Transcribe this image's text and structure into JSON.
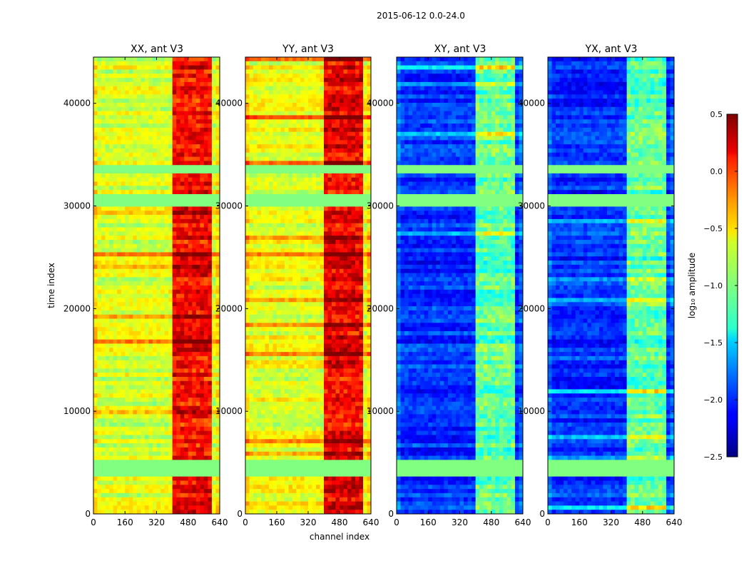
{
  "figure": {
    "suptitle": "2015-06-12 0.0-24.0"
  },
  "chart_data": [
    {
      "type": "heatmap",
      "title": "XX, ant V3",
      "xlabel": "",
      "ylabel": "time index",
      "xlim": [
        0,
        640
      ],
      "ylim": [
        0,
        44500
      ],
      "xticks": [
        "0",
        "160",
        "320",
        "480",
        "640"
      ],
      "yticks": [
        "0",
        "10000",
        "20000",
        "30000",
        "40000"
      ],
      "base_level": -0.75,
      "bright_channels": [
        400,
        600
      ],
      "bright_level": 0.1
    },
    {
      "type": "heatmap",
      "title": "YY, ant V3",
      "xlabel": "channel index",
      "ylabel": "",
      "xlim": [
        0,
        640
      ],
      "ylim": [
        0,
        44500
      ],
      "xticks": [
        "0",
        "160",
        "320",
        "480",
        "640"
      ],
      "yticks": [
        "0",
        "10000",
        "20000",
        "30000",
        "40000"
      ],
      "base_level": -0.7,
      "bright_channels": [
        400,
        600
      ],
      "bright_level": 0.15
    },
    {
      "type": "heatmap",
      "title": "XY, ant V3",
      "xlabel": "",
      "ylabel": "",
      "xlim": [
        0,
        640
      ],
      "ylim": [
        0,
        44500
      ],
      "xticks": [
        "0",
        "160",
        "320",
        "480",
        "640"
      ],
      "yticks": [
        "0",
        "10000",
        "20000",
        "30000",
        "40000"
      ],
      "base_level": -2.0,
      "bright_channels": [
        400,
        600
      ],
      "bright_level": -1.1
    },
    {
      "type": "heatmap",
      "title": "YX, ant V3",
      "xlabel": "",
      "ylabel": "",
      "xlim": [
        0,
        640
      ],
      "ylim": [
        0,
        44500
      ],
      "xticks": [
        "0",
        "160",
        "320",
        "480",
        "640"
      ],
      "yticks": [
        "0",
        "10000",
        "20000",
        "30000",
        "40000"
      ],
      "base_level": -2.0,
      "bright_channels": [
        400,
        600
      ],
      "bright_level": -1.1
    }
  ],
  "colorbar": {
    "label": "log₁₀ amplitude",
    "range": [
      -2.5,
      0.5
    ],
    "ticks": [
      "0.5",
      "0.0",
      "−0.5",
      "−1.0",
      "−1.5",
      "−2.0",
      "−2.5"
    ],
    "colormap": "jet"
  },
  "flagged_bands": [
    [
      3600,
      5200
    ],
    [
      30000,
      31000
    ],
    [
      33000,
      34000
    ]
  ],
  "flagged_level": -1.0
}
